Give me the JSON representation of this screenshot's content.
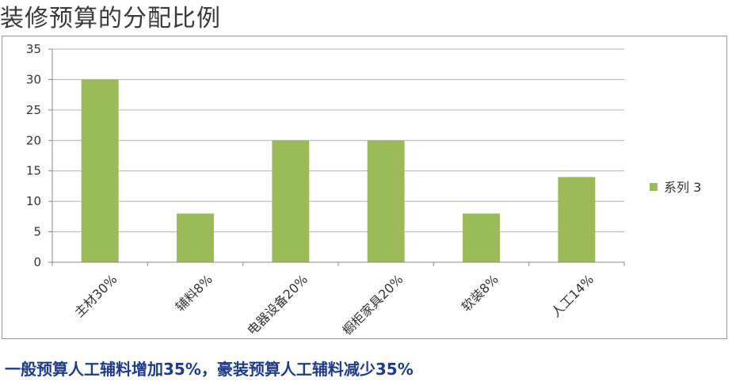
{
  "title": "装修预算的分配比例",
  "footer_note": "一般预算人工辅料增加35%，豪装预算人工辅料减少35%",
  "colors": {
    "bar": "#9bbb59",
    "grid": "#b0b0b0",
    "axis": "#888888",
    "footer": "#1f3c88"
  },
  "chart_data": {
    "type": "bar",
    "title": "",
    "xlabel": "",
    "ylabel": "",
    "categories": [
      "主材30%",
      "辅料8%",
      "电器设备20%",
      "橱柜家具20%",
      "软装8%",
      "人工14%"
    ],
    "series": [
      {
        "name": "系列 3",
        "values": [
          30,
          8,
          20,
          20,
          8,
          14
        ]
      }
    ],
    "ylim": [
      0,
      35
    ],
    "yticks": [
      0,
      5,
      10,
      15,
      20,
      25,
      30,
      35
    ],
    "grid": true,
    "legend": "right"
  }
}
